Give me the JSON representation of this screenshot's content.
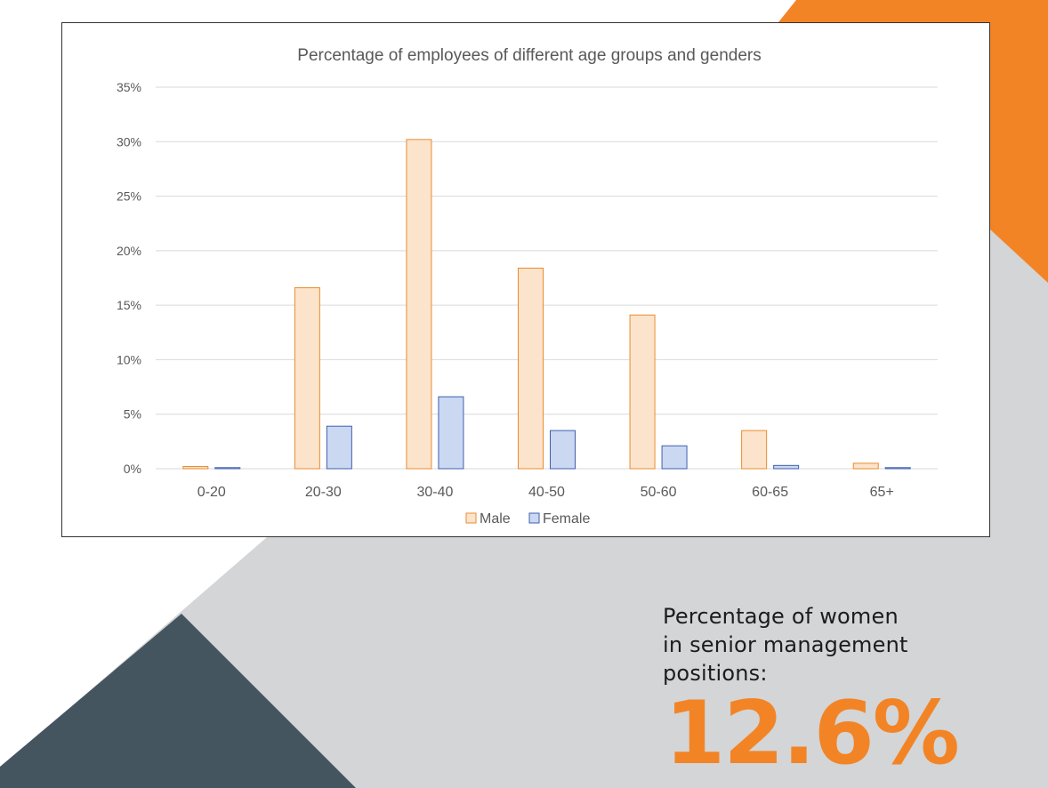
{
  "theme": {
    "orange": "#f38426",
    "slate": "#445560",
    "light_grey": "#d3d5d6",
    "male_fill": "#fce4cc",
    "male_stroke": "#e98b2d",
    "female_fill": "#cbd8f2",
    "female_stroke": "#3f5fae",
    "grid": "#d9d9d9",
    "text": "#595959"
  },
  "chart_data": {
    "type": "bar",
    "title": "Percentage of employees of different age groups and genders",
    "xlabel": "",
    "ylabel": "",
    "categories": [
      "0-20",
      "20-30",
      "30-40",
      "40-50",
      "50-60",
      "60-65",
      "65+"
    ],
    "series": [
      {
        "name": "Male",
        "values": [
          0.2,
          16.6,
          30.2,
          18.4,
          14.1,
          3.5,
          0.5
        ]
      },
      {
        "name": "Female",
        "values": [
          0.1,
          3.9,
          6.6,
          3.5,
          2.1,
          0.3,
          0.1
        ]
      }
    ],
    "ylim": [
      0,
      35
    ],
    "yticks": [
      0,
      5,
      10,
      15,
      20,
      25,
      30,
      35
    ],
    "ytick_labels": [
      "0%",
      "5%",
      "10%",
      "15%",
      "20%",
      "25%",
      "30%",
      "35%"
    ],
    "grid": true,
    "legend_position": "bottom"
  },
  "stat": {
    "label_lines": [
      "Percentage of women",
      "in senior management",
      "positions:"
    ],
    "value": "12.6%"
  }
}
